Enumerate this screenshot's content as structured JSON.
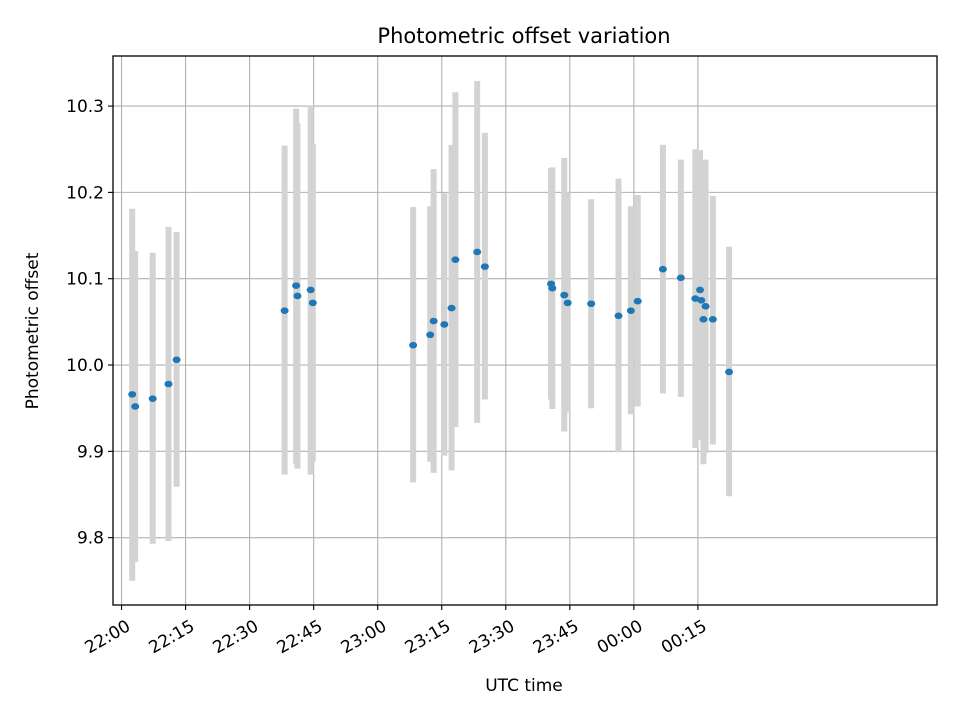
{
  "chart_data": {
    "type": "scatter",
    "title": "Photometric offset variation",
    "xlabel": "UTC time",
    "ylabel": "Photometric offset",
    "x_axis_kind": "time (minutes after 22:00 UTC)",
    "xlim": [
      -2,
      191
    ],
    "ylim": [
      9.722,
      10.358
    ],
    "grid": true,
    "x_ticks": [
      {
        "value": 0,
        "label": "22:00"
      },
      {
        "value": 15,
        "label": "22:15"
      },
      {
        "value": 30,
        "label": "22:30"
      },
      {
        "value": 45,
        "label": "22:45"
      },
      {
        "value": 60,
        "label": "23:00"
      },
      {
        "value": 75,
        "label": "23:15"
      },
      {
        "value": 90,
        "label": "23:30"
      },
      {
        "value": 105,
        "label": "23:45"
      },
      {
        "value": 120,
        "label": "00:00"
      },
      {
        "value": 135,
        "label": "00:15"
      }
    ],
    "y_ticks": [
      {
        "value": 9.8,
        "label": "9.8"
      },
      {
        "value": 9.9,
        "label": "9.9"
      },
      {
        "value": 10.0,
        "label": "10.0"
      },
      {
        "value": 10.1,
        "label": "10.1"
      },
      {
        "value": 10.2,
        "label": "10.2"
      },
      {
        "value": 10.3,
        "label": "10.3"
      }
    ],
    "marker_color": "#1f77b4",
    "errorbar_color": "#d3d3d3",
    "points": [
      {
        "t": 2.5,
        "y": 9.966,
        "lo": 9.75,
        "hi": 10.181
      },
      {
        "t": 3.2,
        "y": 9.952,
        "lo": 9.772,
        "hi": 10.132
      },
      {
        "t": 7.3,
        "y": 9.961,
        "lo": 9.793,
        "hi": 10.13
      },
      {
        "t": 11.0,
        "y": 9.978,
        "lo": 9.796,
        "hi": 10.16
      },
      {
        "t": 12.9,
        "y": 10.006,
        "lo": 9.859,
        "hi": 10.154
      },
      {
        "t": 38.2,
        "y": 10.063,
        "lo": 9.873,
        "hi": 10.254
      },
      {
        "t": 40.9,
        "y": 10.092,
        "lo": 9.885,
        "hi": 10.297
      },
      {
        "t": 41.2,
        "y": 10.08,
        "lo": 9.88,
        "hi": 10.28
      },
      {
        "t": 44.3,
        "y": 10.087,
        "lo": 9.873,
        "hi": 10.301
      },
      {
        "t": 44.8,
        "y": 10.072,
        "lo": 9.888,
        "hi": 10.256
      },
      {
        "t": 68.3,
        "y": 10.023,
        "lo": 9.864,
        "hi": 10.183
      },
      {
        "t": 72.3,
        "y": 10.035,
        "lo": 9.888,
        "hi": 10.184
      },
      {
        "t": 73.1,
        "y": 10.051,
        "lo": 9.875,
        "hi": 10.227
      },
      {
        "t": 75.6,
        "y": 10.047,
        "lo": 9.895,
        "hi": 10.199
      },
      {
        "t": 77.3,
        "y": 10.066,
        "lo": 9.878,
        "hi": 10.255
      },
      {
        "t": 78.2,
        "y": 10.122,
        "lo": 9.928,
        "hi": 10.316
      },
      {
        "t": 83.3,
        "y": 10.131,
        "lo": 9.933,
        "hi": 10.329
      },
      {
        "t": 85.1,
        "y": 10.114,
        "lo": 9.96,
        "hi": 10.269
      },
      {
        "t": 100.6,
        "y": 10.094,
        "lo": 9.96,
        "hi": 10.228
      },
      {
        "t": 100.9,
        "y": 10.089,
        "lo": 9.949,
        "hi": 10.229
      },
      {
        "t": 103.7,
        "y": 10.081,
        "lo": 9.923,
        "hi": 10.24
      },
      {
        "t": 104.5,
        "y": 10.072,
        "lo": 9.945,
        "hi": 10.2
      },
      {
        "t": 110.0,
        "y": 10.071,
        "lo": 9.95,
        "hi": 10.192
      },
      {
        "t": 116.4,
        "y": 10.057,
        "lo": 9.899,
        "hi": 10.216
      },
      {
        "t": 119.3,
        "y": 10.063,
        "lo": 9.943,
        "hi": 10.184
      },
      {
        "t": 120.9,
        "y": 10.074,
        "lo": 9.952,
        "hi": 10.197
      },
      {
        "t": 126.8,
        "y": 10.111,
        "lo": 9.967,
        "hi": 10.255
      },
      {
        "t": 131.0,
        "y": 10.101,
        "lo": 9.963,
        "hi": 10.238
      },
      {
        "t": 134.4,
        "y": 10.077,
        "lo": 9.904,
        "hi": 10.25
      },
      {
        "t": 135.5,
        "y": 10.087,
        "lo": 9.925,
        "hi": 10.249
      },
      {
        "t": 135.8,
        "y": 10.075,
        "lo": 9.913,
        "hi": 10.236
      },
      {
        "t": 136.3,
        "y": 10.053,
        "lo": 9.885,
        "hi": 10.221
      },
      {
        "t": 136.8,
        "y": 10.068,
        "lo": 9.898,
        "hi": 10.238
      },
      {
        "t": 138.5,
        "y": 10.053,
        "lo": 9.908,
        "hi": 10.196
      },
      {
        "t": 142.3,
        "y": 9.992,
        "lo": 9.848,
        "hi": 10.137
      }
    ]
  }
}
